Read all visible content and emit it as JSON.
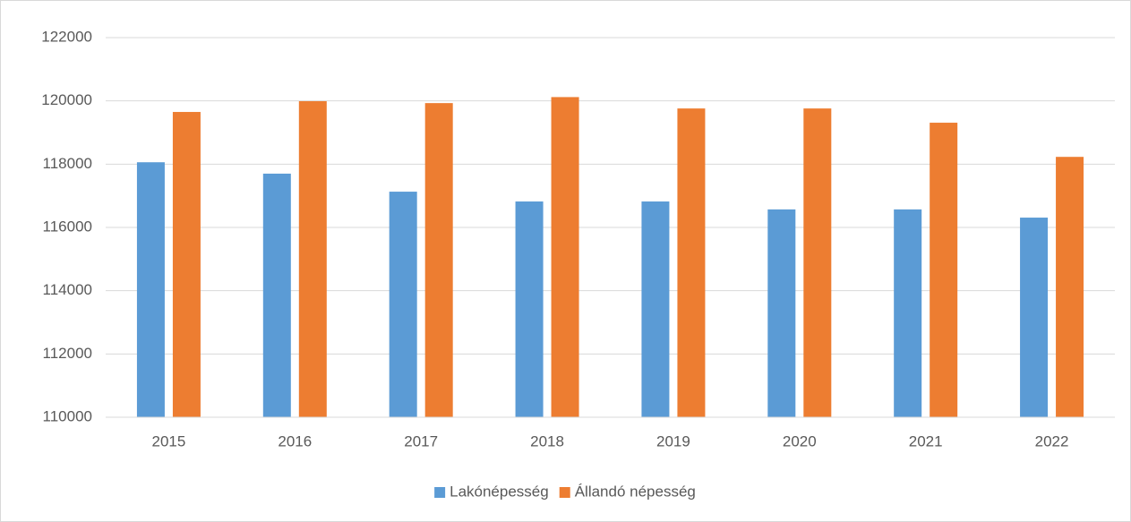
{
  "chart_data": {
    "type": "bar",
    "categories": [
      "2015",
      "2016",
      "2017",
      "2018",
      "2019",
      "2020",
      "2021",
      "2022"
    ],
    "series": [
      {
        "name": "Lakónépesség",
        "color": "#5b9bd5",
        "values": [
          118060,
          117700,
          117130,
          116820,
          116820,
          116570,
          116570,
          116310
        ]
      },
      {
        "name": "Állandó népesség",
        "color": "#ed7d31",
        "values": [
          119650,
          119990,
          119930,
          120120,
          119760,
          119760,
          119310,
          118230
        ]
      }
    ],
    "ylim": [
      110000,
      122000
    ],
    "yticks": [
      110000,
      112000,
      114000,
      116000,
      118000,
      120000,
      122000
    ],
    "grid": true,
    "legend": "bottom"
  }
}
